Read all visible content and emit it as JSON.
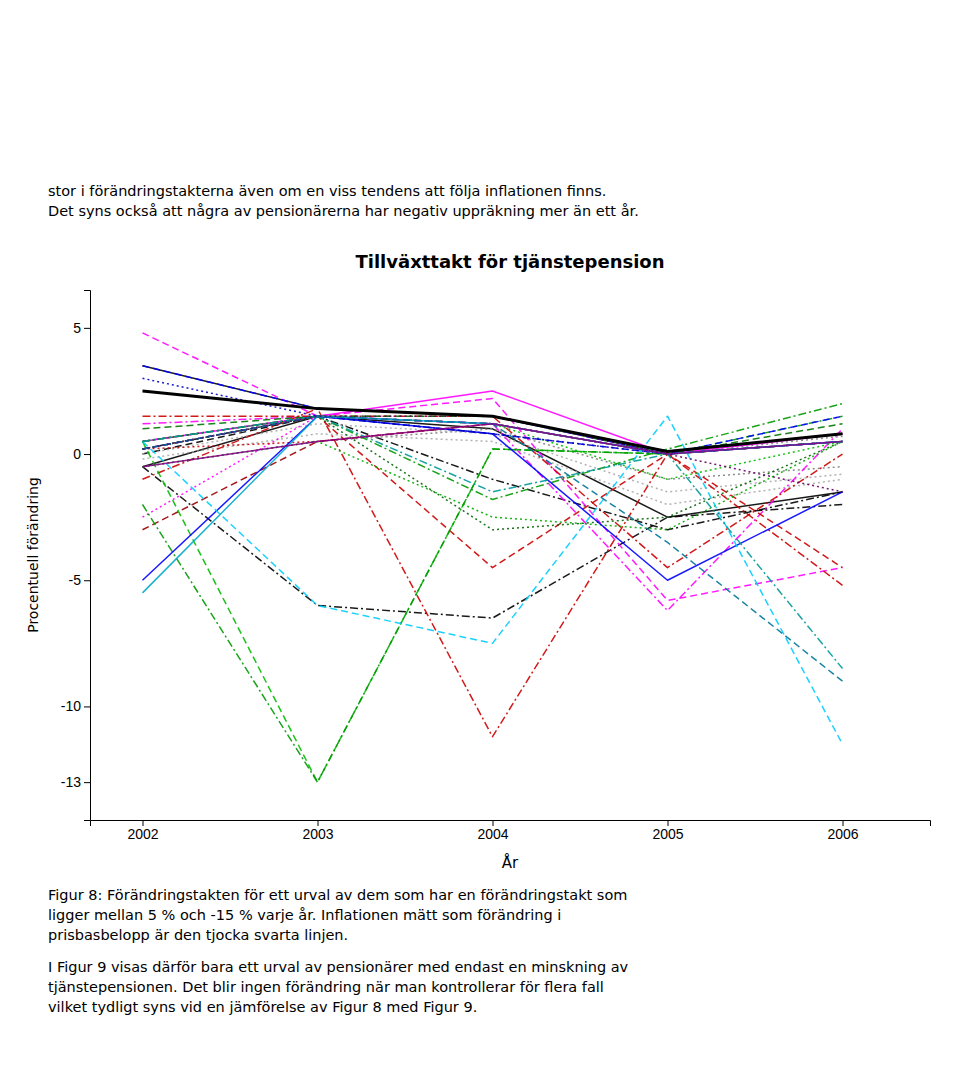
{
  "chart_data": {
    "type": "line",
    "title": "Tillväxttakt för tjänstepension",
    "xlabel": "År",
    "ylabel": "Procentuell förändring",
    "annotations": [
      "stor i förändringstakterna även om en viss tendens att följa inflationen finns.\nDet syns också att några av pensionärerna har negativ uppräkning mer än ett år.",
      "Figur 8: Förändringstakten för ett urval av dem som har en förändringstakt som\nligger mellan 5 % och -15 % varje år. Inflationen mätt som förändring i\nprisbasbelopp är den tjocka svarta linjen.",
      "I Figur 9 visas därför bara ett urval av pensionärer med endast en minskning av\ntjänstepensionen. Det blir ingen förändring när man kontrollerar för flera fall\nvilket tydligt syns vid en jämförelse av Figur 8 med Figur 9."
    ],
    "x": [
      2002,
      2003,
      2004,
      2005,
      2006
    ],
    "xlim": [
      2001.7,
      2006.5
    ],
    "xticks": [
      2002,
      2003,
      2004,
      2005,
      2006
    ],
    "ylim": [
      -14.5,
      6.5
    ],
    "yticks": [
      5,
      0,
      -5,
      -10,
      -13
    ],
    "grid": false,
    "series": [
      {
        "color": "#000000",
        "line_style": "solid",
        "values": [
          3.5,
          1.8,
          1.5,
          0.1,
          0.8
        ]
      },
      {
        "color": "#000000",
        "line_style": "dashed",
        "values": [
          0.0,
          1.5,
          1.2,
          0.0,
          0.5
        ]
      },
      {
        "color": "#000000",
        "line_style": "solid",
        "values": [
          -0.5,
          1.5,
          1.0,
          -2.5,
          -1.5
        ]
      },
      {
        "color": "#000000",
        "line_style": "dashdot",
        "values": [
          0.2,
          1.5,
          -1.0,
          -3.0,
          -1.5
        ]
      },
      {
        "color": "#000000",
        "line_style": "dashdot",
        "values": [
          -0.5,
          -6.0,
          -6.5,
          -2.5,
          -2.0
        ]
      },
      {
        "color": "#808080",
        "line_style": "dotted",
        "values": [
          0.2,
          1.5,
          1.2,
          0.0,
          0.7
        ]
      },
      {
        "color": "#808080",
        "line_style": "dotted",
        "values": [
          -0.5,
          0.5,
          1.0,
          -1.0,
          -0.5
        ]
      },
      {
        "color": "#aaaaaa",
        "line_style": "dotted",
        "values": [
          0.0,
          1.2,
          0.8,
          -1.5,
          -0.8
        ]
      },
      {
        "color": "#aaaaaa",
        "line_style": "dotted",
        "values": [
          -0.2,
          0.8,
          0.5,
          -2.0,
          -1.0
        ]
      },
      {
        "color": "#FF00FF",
        "line_style": "dashed",
        "values": [
          0.5,
          1.5,
          1.2,
          0.0,
          0.5
        ]
      },
      {
        "color": "#FF00FF",
        "line_style": "dashed",
        "values": [
          4.8,
          1.5,
          2.2,
          -5.8,
          -4.5
        ]
      },
      {
        "color": "#FF00FF",
        "line_style": "solid",
        "values": [
          0.5,
          1.5,
          2.5,
          0.0,
          0.8
        ]
      },
      {
        "color": "#FF00FF",
        "line_style": "dashdot",
        "values": [
          1.2,
          1.5,
          1.2,
          -6.2,
          1.0
        ]
      },
      {
        "color": "#FF00FF",
        "line_style": "dotted",
        "values": [
          -2.5,
          1.5,
          1.2,
          0.0,
          0.5
        ]
      },
      {
        "color": "#CC0000",
        "line_style": "dashed",
        "values": [
          0.2,
          1.5,
          -4.5,
          0.0,
          -4.5
        ]
      },
      {
        "color": "#CC0000",
        "line_style": "dashdot",
        "values": [
          -1.0,
          1.8,
          -11.2,
          0.0,
          -5.2
        ]
      },
      {
        "color": "#CC0000",
        "line_style": "dashdot",
        "values": [
          1.5,
          1.5,
          1.5,
          -4.5,
          0.0
        ]
      },
      {
        "color": "#CC0000",
        "line_style": "dotted",
        "values": [
          0.2,
          0.5,
          1.2,
          0.0,
          0.5
        ]
      },
      {
        "color": "#990000",
        "line_style": "dashed",
        "values": [
          -3.0,
          0.5,
          1.2,
          0.0,
          0.5
        ]
      },
      {
        "color": "#007700",
        "line_style": "dashed",
        "values": [
          1.0,
          1.5,
          1.5,
          0.0,
          1.2
        ]
      },
      {
        "color": "#00BB00",
        "line_style": "dashed",
        "values": [
          0.5,
          -13.0,
          0.2,
          0.0,
          0.5
        ]
      },
      {
        "color": "#009900",
        "line_style": "dashdot",
        "values": [
          -2.0,
          -13.0,
          0.2,
          0.0,
          1.5
        ]
      },
      {
        "color": "#009900",
        "line_style": "dashdot",
        "values": [
          0.5,
          1.5,
          -1.8,
          0.2,
          2.0
        ]
      },
      {
        "color": "#00BB00",
        "line_style": "dotted",
        "values": [
          0.2,
          1.5,
          1.2,
          -1.0,
          0.5
        ]
      },
      {
        "color": "#00AA00",
        "line_style": "dotted",
        "values": [
          -0.5,
          0.5,
          -2.5,
          -3.0,
          0.5
        ]
      },
      {
        "color": "#006600",
        "line_style": "dotted",
        "values": [
          0.5,
          1.5,
          -3.0,
          -2.5,
          0.5
        ]
      },
      {
        "color": "#0000FF",
        "line_style": "dashed",
        "values": [
          3.5,
          1.8,
          1.5,
          0.0,
          1.5
        ]
      },
      {
        "color": "#0000FF",
        "line_style": "solid",
        "values": [
          -5.0,
          1.5,
          0.8,
          -5.0,
          -1.5
        ]
      },
      {
        "color": "#0000CC",
        "line_style": "dashed",
        "values": [
          0.2,
          1.5,
          0.8,
          0.0,
          0.5
        ]
      },
      {
        "color": "#0000CC",
        "line_style": "dotted",
        "values": [
          3.0,
          1.5,
          0.8,
          0.0,
          0.5
        ]
      },
      {
        "color": "#00CCFF",
        "line_style": "dashed",
        "values": [
          0.5,
          -6.0,
          -7.5,
          1.5,
          -11.5
        ]
      },
      {
        "color": "#00AACC",
        "line_style": "solid",
        "values": [
          -5.5,
          1.5,
          1.2,
          0.0,
          0.5
        ]
      },
      {
        "color": "#00AACC",
        "line_style": "dotted",
        "values": [
          0.2,
          1.5,
          1.2,
          0.0,
          0.5
        ]
      },
      {
        "color": "#009999",
        "line_style": "dashdot",
        "values": [
          0.5,
          1.5,
          -1.5,
          0.0,
          -8.5
        ]
      },
      {
        "color": "#007799",
        "line_style": "dashed",
        "values": [
          0.2,
          1.5,
          1.2,
          -3.5,
          -9.0
        ]
      },
      {
        "color": "#880088",
        "line_style": "solid",
        "values": [
          -0.5,
          0.5,
          1.2,
          0.0,
          0.5
        ]
      },
      {
        "color": "#660066",
        "line_style": "dotted",
        "values": [
          0.2,
          1.5,
          1.5,
          0.0,
          -1.5
        ]
      },
      {
        "color": "#000000",
        "line_style": "solid",
        "values": [
          2.5,
          1.8,
          1.5,
          0.1,
          0.8
        ]
      }
    ]
  }
}
